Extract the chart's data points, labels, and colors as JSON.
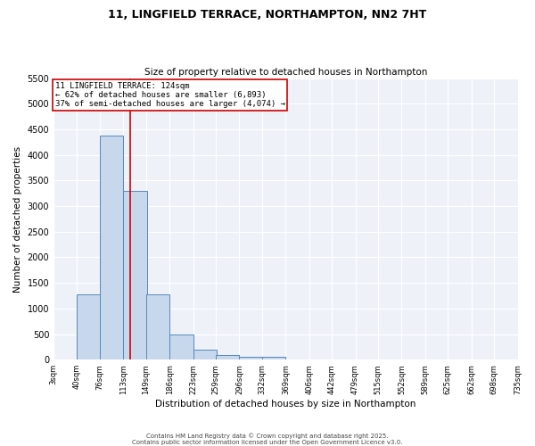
{
  "title": "11, LINGFIELD TERRACE, NORTHAMPTON, NN2 7HT",
  "subtitle": "Size of property relative to detached houses in Northampton",
  "xlabel": "Distribution of detached houses by size in Northampton",
  "ylabel": "Number of detached properties",
  "bar_color": "#c8d8ec",
  "bar_edge_color": "#5588bb",
  "bg_color": "#eef2f8",
  "grid_color": "#ffffff",
  "bin_edges": [
    3,
    40,
    76,
    113,
    149,
    186,
    223,
    259,
    296,
    332,
    369,
    406,
    442,
    479,
    515,
    552,
    589,
    625,
    662,
    698,
    735
  ],
  "bar_heights": [
    0,
    1270,
    4380,
    3300,
    1280,
    500,
    200,
    90,
    60,
    50,
    0,
    0,
    0,
    0,
    0,
    0,
    0,
    0,
    0,
    0
  ],
  "property_size": 124,
  "red_line_color": "#cc0000",
  "annotation_text": "11 LINGFIELD TERRACE: 124sqm\n← 62% of detached houses are smaller (6,893)\n37% of semi-detached houses are larger (4,074) →",
  "annotation_box_color": "#cc0000",
  "ylim": [
    0,
    5500
  ],
  "yticks": [
    0,
    500,
    1000,
    1500,
    2000,
    2500,
    3000,
    3500,
    4000,
    4500,
    5000,
    5500
  ],
  "footer1": "Contains HM Land Registry data © Crown copyright and database right 2025.",
  "footer2": "Contains public sector information licensed under the Open Government Licence v3.0."
}
